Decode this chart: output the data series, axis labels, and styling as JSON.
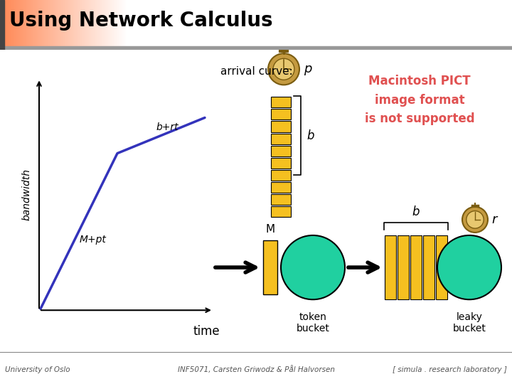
{
  "title": "Using Network Calculus",
  "bg_color": "#ffffff",
  "title_color": "#000000",
  "title_fontsize": 20,
  "header_bar_color": "#cc4400",
  "arrival_curve_label": "arrival curve:",
  "graph_label_brt": "b+rt",
  "graph_label_mpt": "M+pt",
  "graph_xlabel": "time",
  "graph_ylabel": "bandwidth",
  "curve_color": "#3333bb",
  "token_bucket_label": "token\nbucket",
  "leaky_bucket_label": "leaky\nbucket",
  "M_label": "M",
  "b_label_top": "b",
  "b_label_bot": "b",
  "p_label": "p",
  "r_label": "r",
  "bar_color": "#f5c020",
  "circle_color": "#20d0a0",
  "pict_text_color": "#e05050",
  "pict_text": "Macintosh PICT\nimage format\nis not supported",
  "footer_left": "University of Oslo",
  "footer_center": "INF5071, Carsten Griwodz & Pål Halvorsen",
  "footer_right": "[ simula . research laboratory ]",
  "footer_color": "#555555"
}
